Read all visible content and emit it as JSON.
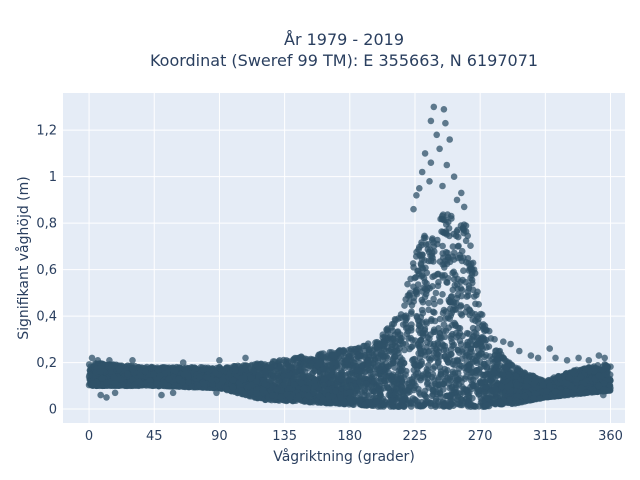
{
  "chart_data": {
    "type": "scatter",
    "title": [
      "År 1979 - 2019",
      "Koordinat (Sweref 99 TM): E 355663, N 6197071"
    ],
    "xlabel": "Vågriktning (grader)",
    "ylabel": "Signifikant våghöjd (m)",
    "xlim": [
      -18,
      370
    ],
    "ylim": [
      -0.06,
      1.36
    ],
    "xticks": [
      0,
      45,
      90,
      135,
      180,
      225,
      270,
      315,
      360
    ],
    "yticks": [
      0,
      0.2,
      0.4,
      0.6,
      0.8,
      1,
      1.2
    ],
    "ytick_labels": [
      "0",
      "0,2",
      "0,4",
      "0,6",
      "0,8",
      "1",
      "1,2"
    ],
    "grid": true,
    "plot_background": "#e5ecf6",
    "marker_color": "#2f5168",
    "envelope": {
      "direction_deg": [
        0,
        20,
        45,
        90,
        120,
        150,
        180,
        200,
        215,
        225,
        232,
        240,
        245,
        250,
        255,
        260,
        265,
        270,
        275,
        280,
        290,
        300,
        315,
        330,
        345,
        360
      ],
      "lower_m": [
        0.1,
        0.1,
        0.1,
        0.09,
        0.04,
        0.03,
        0.02,
        0.01,
        0.01,
        0.01,
        0.01,
        0.01,
        0.01,
        0.01,
        0.01,
        0.01,
        0.01,
        0.01,
        0.01,
        0.02,
        0.02,
        0.03,
        0.05,
        0.06,
        0.07,
        0.08
      ],
      "upper_m": [
        0.2,
        0.19,
        0.18,
        0.18,
        0.2,
        0.23,
        0.26,
        0.3,
        0.42,
        0.68,
        0.75,
        0.8,
        0.86,
        0.84,
        0.8,
        0.8,
        0.66,
        0.44,
        0.36,
        0.28,
        0.2,
        0.16,
        0.12,
        0.16,
        0.18,
        0.2
      ]
    },
    "outliers": [
      [
        238,
        1.3
      ],
      [
        245,
        1.29
      ],
      [
        246,
        1.23
      ],
      [
        236,
        1.24
      ],
      [
        240,
        1.18
      ],
      [
        249,
        1.16
      ],
      [
        242,
        1.12
      ],
      [
        232,
        1.1
      ],
      [
        236,
        1.06
      ],
      [
        247,
        1.05
      ],
      [
        230,
        1.02
      ],
      [
        252,
        1.0
      ],
      [
        235,
        0.98
      ],
      [
        244,
        0.96
      ],
      [
        228,
        0.95
      ],
      [
        257,
        0.93
      ],
      [
        226,
        0.92
      ],
      [
        254,
        0.9
      ],
      [
        259,
        0.87
      ],
      [
        224,
        0.86
      ],
      [
        3,
        0.11
      ],
      [
        8,
        0.06
      ],
      [
        12,
        0.05
      ],
      [
        18,
        0.07
      ],
      [
        50,
        0.06
      ],
      [
        58,
        0.07
      ],
      [
        88,
        0.07
      ],
      [
        105,
        0.08
      ],
      [
        2,
        0.22
      ],
      [
        6,
        0.21
      ],
      [
        14,
        0.21
      ],
      [
        30,
        0.21
      ],
      [
        65,
        0.2
      ],
      [
        90,
        0.21
      ],
      [
        108,
        0.22
      ],
      [
        280,
        0.3
      ],
      [
        286,
        0.29
      ],
      [
        291,
        0.28
      ],
      [
        297,
        0.25
      ],
      [
        305,
        0.23
      ],
      [
        310,
        0.22
      ],
      [
        318,
        0.26
      ],
      [
        322,
        0.22
      ],
      [
        330,
        0.21
      ],
      [
        338,
        0.22
      ],
      [
        345,
        0.21
      ],
      [
        352,
        0.23
      ],
      [
        356,
        0.22
      ],
      [
        358,
        0.18
      ],
      [
        302,
        0.1
      ],
      [
        308,
        0.12
      ],
      [
        318,
        0.1
      ],
      [
        330,
        0.11
      ],
      [
        340,
        0.09
      ],
      [
        352,
        0.1
      ],
      [
        359,
        0.08
      ],
      [
        355,
        0.06
      ]
    ]
  }
}
